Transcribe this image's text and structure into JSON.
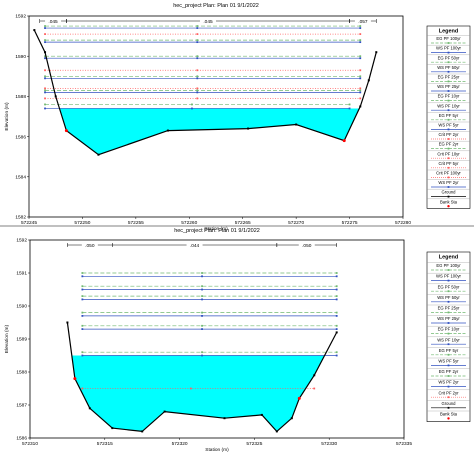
{
  "colors": {
    "water": "#00ffff",
    "ground": "#000000",
    "bank_sta": "#ff0000",
    "eg": "#70b870",
    "ws": "#3050c0",
    "crit": "#ff6060"
  },
  "legend_title": "Legend",
  "chart_data": [
    {
      "type": "cross-section",
      "title": "hec_project      Plan: Plan 01    9/1/2022",
      "xlabel": "Station (m)",
      "ylabel": "Elevation (m)",
      "xlim": [
        572245,
        572280
      ],
      "ylim": [
        1582,
        1592
      ],
      "xticks": [
        572245,
        572250,
        572255,
        572260,
        572265,
        572270,
        572275,
        572280
      ],
      "xtick_labels": [
        "572245",
        "572250",
        "572255",
        "572260",
        "572265",
        "572270",
        "572275",
        "572280"
      ],
      "yticks": [
        1582,
        1584,
        1586,
        1588,
        1590,
        1592
      ],
      "ytick_labels": [
        "1582",
        "1584",
        "1586",
        "1588",
        "1590",
        "1592"
      ],
      "roughness": [
        {
          "label": ".045",
          "from": 572246,
          "to": 572248.5
        },
        {
          "label": ".045",
          "from": 572248.5,
          "to": 572275
        },
        {
          "label": ".057",
          "from": 572275,
          "to": 572277.5
        }
      ],
      "ground": [
        [
          572245.5,
          1591.3
        ],
        [
          572246.5,
          1590.2
        ],
        [
          572247.5,
          1588.0
        ],
        [
          572248.5,
          1586.3
        ],
        [
          572251.5,
          1585.1
        ],
        [
          572258,
          1586.3
        ],
        [
          572265.5,
          1586.4
        ],
        [
          572270,
          1586.6
        ],
        [
          572274.5,
          1585.8
        ],
        [
          572276,
          1587.5
        ],
        [
          572276.8,
          1588.8
        ],
        [
          572277.5,
          1590.2
        ]
      ],
      "water_surface": 1587.4,
      "bank_stations": [
        [
          572248.5,
          1586.3
        ],
        [
          572274.5,
          1585.8
        ]
      ],
      "profiles": [
        {
          "name": "EG PF 100yr",
          "type": "eg",
          "elev": 1591.5,
          "x_end": 572276
        },
        {
          "name": "WS PF 100yr",
          "type": "ws",
          "elev": 1591.4,
          "x_end": 572276
        },
        {
          "name": "EG PF 50yr",
          "type": "eg",
          "elev": 1590.8,
          "x_end": 572276
        },
        {
          "name": "WS PF 50yr",
          "type": "ws",
          "elev": 1590.7,
          "x_end": 572276
        },
        {
          "name": "EG PF 25yr",
          "type": "eg",
          "elev": 1590.0,
          "x_end": 572276
        },
        {
          "name": "WS PF 25yr",
          "type": "ws",
          "elev": 1589.9,
          "x_end": 572276
        },
        {
          "name": "EG PF 10yr",
          "type": "eg",
          "elev": 1589.0,
          "x_end": 572276
        },
        {
          "name": "WS PF 10yr",
          "type": "ws",
          "elev": 1588.9,
          "x_end": 572276
        },
        {
          "name": "EG PF 5yr",
          "type": "eg",
          "elev": 1588.3,
          "x_end": 572276
        },
        {
          "name": "WS PF 5yr",
          "type": "ws",
          "elev": 1588.2,
          "x_end": 572276
        },
        {
          "name": "Crit PF 2yr",
          "type": "crit",
          "elev": 1587.9,
          "x_end": 572276
        },
        {
          "name": "EG PF 2yr",
          "type": "eg",
          "elev": 1587.6,
          "x_end": 572275
        },
        {
          "name": "WS PF 2yr",
          "type": "ws",
          "elev": 1587.4,
          "x_end": 572275
        },
        {
          "name": "Crit PF 100yr",
          "type": "crit",
          "elev": 1591.1,
          "x_end": 572276
        },
        {
          "name": "Crit PF 5yr",
          "type": "crit",
          "elev": 1588.4,
          "x_end": 572276
        },
        {
          "name": "Crit PF 10yr",
          "type": "crit",
          "elev": 1589.3,
          "x_end": 572276
        }
      ],
      "legend": [
        "Legend",
        "EG PF 100yr",
        "WS PF 100yr",
        "EG PF 50yr",
        "WS PF 50yr",
        "EG PF 25yr",
        "WS PF 25yr",
        "EG PF 10yr",
        "WS PF 10yr",
        "EG PF 5yr",
        "WS PF 5yr",
        "Crit PF 2yr",
        "EG PF 2yr",
        "Crit PF 10yr",
        "Crit PF 5yr",
        "Crit PF 100yr",
        "WS PF 2yr",
        "Ground",
        "Bank Sta"
      ]
    },
    {
      "type": "cross-section",
      "title": "hec_project      Plan: Plan 01    9/1/2022",
      "xlabel": "Station (m)",
      "ylabel": "Elevation (m)",
      "xlim": [
        572310,
        572335
      ],
      "ylim": [
        1586,
        1592
      ],
      "xticks": [
        572310,
        572315,
        572320,
        572325,
        572330,
        572335
      ],
      "xtick_labels": [
        "572310",
        "572315",
        "572320",
        "572325",
        "572330",
        "572335"
      ],
      "yticks": [
        1586,
        1587,
        1588,
        1589,
        1590,
        1591,
        1592
      ],
      "ytick_labels": [
        "1586",
        "1587",
        "1588",
        "1589",
        "1590",
        "1591",
        "1592"
      ],
      "roughness": [
        {
          "label": ".050",
          "from": 572312.5,
          "to": 572315.5
        },
        {
          "label": ".044",
          "from": 572315.5,
          "to": 572326.5
        },
        {
          "label": ".050",
          "from": 572326.5,
          "to": 572330.5
        }
      ],
      "ground": [
        [
          572312.5,
          1589.5
        ],
        [
          572313,
          1587.8
        ],
        [
          572314,
          1586.9
        ],
        [
          572315.5,
          1586.3
        ],
        [
          572317.5,
          1586.2
        ],
        [
          572319,
          1586.8
        ],
        [
          572323,
          1586.6
        ],
        [
          572325.5,
          1586.7
        ],
        [
          572326.5,
          1586.2
        ],
        [
          572327.5,
          1586.6
        ],
        [
          572328,
          1587.2
        ],
        [
          572329,
          1587.9
        ],
        [
          572330.5,
          1589.2
        ]
      ],
      "water_surface": 1588.5,
      "bank_stations": [
        [
          572313,
          1587.8
        ],
        [
          572328,
          1587.2
        ]
      ],
      "profiles": [
        {
          "name": "EG PF 100yr",
          "type": "eg",
          "elev": 1591.0,
          "x_end": 572330.5
        },
        {
          "name": "WS PF 100yr",
          "type": "ws",
          "elev": 1590.9,
          "x_end": 572330.5
        },
        {
          "name": "EG PF 50yr",
          "type": "eg",
          "elev": 1590.6,
          "x_end": 572330.5
        },
        {
          "name": "WS PF 50yr",
          "type": "ws",
          "elev": 1590.5,
          "x_end": 572330.5
        },
        {
          "name": "EG PF 25yr",
          "type": "eg",
          "elev": 1590.3,
          "x_end": 572330.5
        },
        {
          "name": "WS PF 25yr",
          "type": "ws",
          "elev": 1590.2,
          "x_end": 572330.5
        },
        {
          "name": "EG PF 10yr",
          "type": "eg",
          "elev": 1589.8,
          "x_end": 572330.5
        },
        {
          "name": "WS PF 10yr",
          "type": "ws",
          "elev": 1589.7,
          "x_end": 572330.5
        },
        {
          "name": "EG PF 5yr",
          "type": "eg",
          "elev": 1589.4,
          "x_end": 572330.5
        },
        {
          "name": "WS PF 5yr",
          "type": "ws",
          "elev": 1589.3,
          "x_end": 572330.5
        },
        {
          "name": "EG PF 2yr",
          "type": "eg",
          "elev": 1588.6,
          "x_end": 572330.5
        },
        {
          "name": "WS PF 2yr",
          "type": "ws",
          "elev": 1588.5,
          "x_end": 572330.5
        },
        {
          "name": "Crit PF 2yr",
          "type": "crit",
          "elev": 1587.5,
          "x_end": 572329
        }
      ],
      "legend": [
        "Legend",
        "EG PF 100yr",
        "WS PF 100yr",
        "EG PF 50yr",
        "WS PF 50yr",
        "EG PF 25yr",
        "WS PF 25yr",
        "EG PF 10yr",
        "WS PF 10yr",
        "EG PF 5yr",
        "WS PF 5yr",
        "EG PF 2yr",
        "WS PF 2yr",
        "Crit PF 2yr",
        "Ground",
        "Bank Sta"
      ]
    }
  ]
}
